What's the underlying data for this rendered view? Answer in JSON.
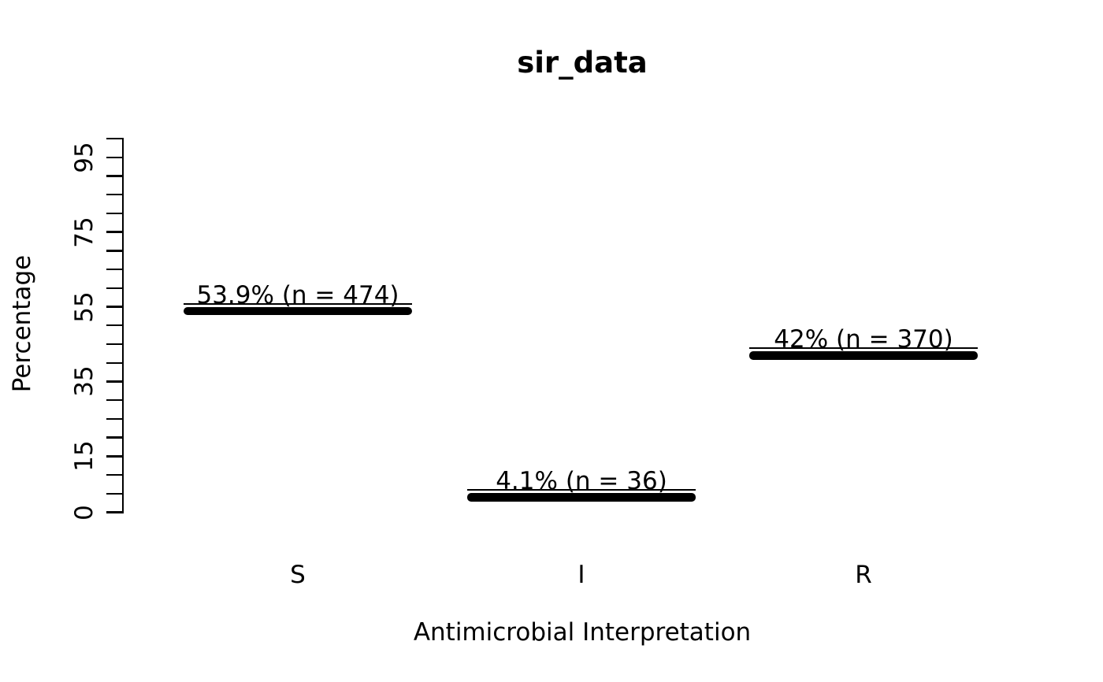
{
  "figure": {
    "background": "#ffffff",
    "foreground": "#000000"
  },
  "chart_data": {
    "type": "bar",
    "title": "sir_data",
    "xlabel": "Antimicrobial Interpretation",
    "ylabel": "Percentage",
    "categories": [
      "S",
      "I",
      "R"
    ],
    "series": [
      {
        "name": "percentage",
        "values": [
          53.9,
          4.1,
          42
        ]
      }
    ],
    "counts": [
      474,
      36,
      370
    ],
    "point_labels": [
      "53.9% (n = 474)",
      "4.1% (n = 36)",
      "42% (n = 370)"
    ],
    "ylim": [
      0,
      100
    ],
    "ytick_step": 5,
    "ytick_labeled": [
      0,
      15,
      35,
      55,
      75,
      95
    ],
    "grid": false,
    "legend": false,
    "mark_style": "thick-horizontal-dash-with-underline",
    "colors": {
      "bar": "#000000",
      "text": "#000000",
      "axis": "#000000"
    }
  }
}
